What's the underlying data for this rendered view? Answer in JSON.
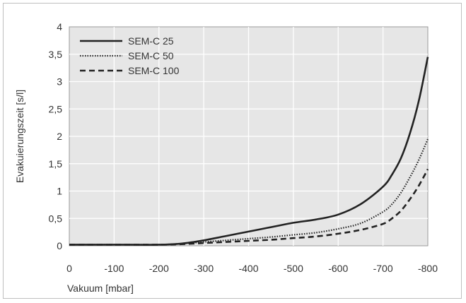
{
  "chart_data": {
    "type": "line",
    "title": "",
    "xlabel": "Vakuum [mbar]",
    "ylabel": "Evakuierungszeit [s/l]",
    "xlim": [
      0,
      -800
    ],
    "ylim": [
      0,
      4
    ],
    "x_ticks": [
      "0",
      "-100",
      "-200",
      "-300",
      "-400",
      "-500",
      "-600",
      "-700",
      "-800"
    ],
    "y_ticks": [
      "0",
      "0,5",
      "1",
      "1,5",
      "2",
      "2,5",
      "3",
      "3,5",
      "4"
    ],
    "grid": true,
    "legend_position": "top-left",
    "series": [
      {
        "name": "SEM-C 25",
        "style": "solid",
        "x": [
          0,
          -100,
          -200,
          -250,
          -300,
          -350,
          -400,
          -450,
          -500,
          -550,
          -600,
          -650,
          -700,
          -720,
          -740,
          -760,
          -780,
          -800
        ],
        "y": [
          0.02,
          0.02,
          0.02,
          0.04,
          0.1,
          0.18,
          0.26,
          0.34,
          0.42,
          0.48,
          0.57,
          0.76,
          1.08,
          1.3,
          1.6,
          2.05,
          2.65,
          3.45
        ]
      },
      {
        "name": "SEM-C 50",
        "style": "dotted",
        "x": [
          0,
          -100,
          -200,
          -250,
          -300,
          -350,
          -400,
          -450,
          -500,
          -550,
          -600,
          -650,
          -700,
          -720,
          -740,
          -760,
          -780,
          -800
        ],
        "y": [
          0.02,
          0.02,
          0.02,
          0.04,
          0.07,
          0.1,
          0.13,
          0.16,
          0.2,
          0.24,
          0.31,
          0.41,
          0.62,
          0.76,
          0.97,
          1.25,
          1.57,
          1.95
        ]
      },
      {
        "name": "SEM-C 100",
        "style": "dashed",
        "x": [
          0,
          -100,
          -200,
          -250,
          -300,
          -350,
          -400,
          -450,
          -500,
          -550,
          -600,
          -650,
          -700,
          -720,
          -740,
          -760,
          -780,
          -800
        ],
        "y": [
          0.02,
          0.02,
          0.02,
          0.03,
          0.05,
          0.07,
          0.09,
          0.11,
          0.14,
          0.17,
          0.22,
          0.29,
          0.4,
          0.5,
          0.64,
          0.85,
          1.1,
          1.4
        ]
      }
    ]
  },
  "colors": {
    "plot_background": "#e6e6e6",
    "grid": "#ffffff",
    "line": "#222222",
    "frame_border": "#bfbfbf"
  }
}
